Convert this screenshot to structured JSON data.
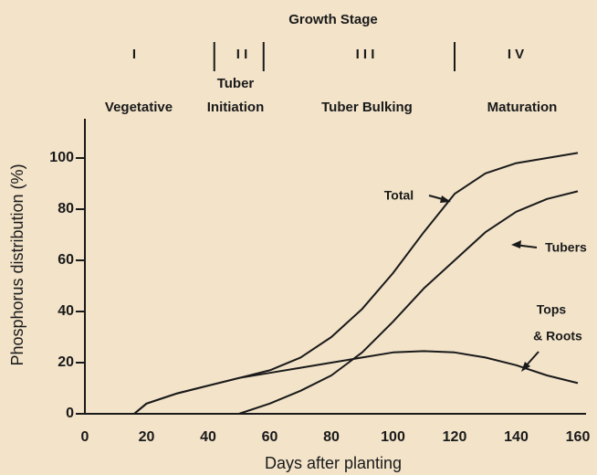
{
  "chart_data": {
    "type": "line",
    "growth_stage": {
      "title": "Growth Stage",
      "stages": [
        {
          "numeral": "I",
          "name": [
            "Vegetative"
          ]
        },
        {
          "numeral": "I I",
          "name": [
            "Tuber",
            "Initiation"
          ]
        },
        {
          "numeral": "I I I",
          "name": [
            "Tuber Bulking"
          ]
        },
        {
          "numeral": "I V",
          "name": [
            "Maturation"
          ]
        }
      ],
      "boundaries": [
        42,
        58,
        120
      ]
    },
    "x_label": "Days after planting",
    "y_label": "Phosphorus distribution (%)",
    "x": [
      16,
      20,
      30,
      40,
      50,
      60,
      70,
      80,
      90,
      100,
      110,
      120,
      130,
      140,
      150,
      160
    ],
    "series": [
      {
        "name": "Total",
        "color": "#1a1a1a",
        "values": [
          0,
          4,
          8,
          11,
          14,
          17,
          22,
          30,
          41,
          55,
          71,
          86,
          94,
          98,
          100,
          102
        ]
      },
      {
        "name": "Tubers",
        "color": "#1a1a1a",
        "values": [
          null,
          null,
          null,
          null,
          0,
          4,
          9,
          15,
          24,
          36,
          49,
          60,
          71,
          79,
          84,
          87
        ]
      },
      {
        "label_lines": [
          "Tops",
          "& Roots"
        ],
        "color": "#1a1a1a",
        "values": [
          0,
          4,
          8,
          11,
          14,
          16,
          18,
          20,
          22,
          24,
          24.5,
          24,
          22,
          19,
          15,
          12
        ]
      }
    ],
    "xlim": [
      0,
      160
    ],
    "ylim": [
      0,
      115
    ],
    "xticks": [
      0,
      20,
      40,
      60,
      80,
      100,
      120,
      140,
      160
    ],
    "yticks": [
      0,
      20,
      40,
      60,
      80,
      100
    ]
  }
}
